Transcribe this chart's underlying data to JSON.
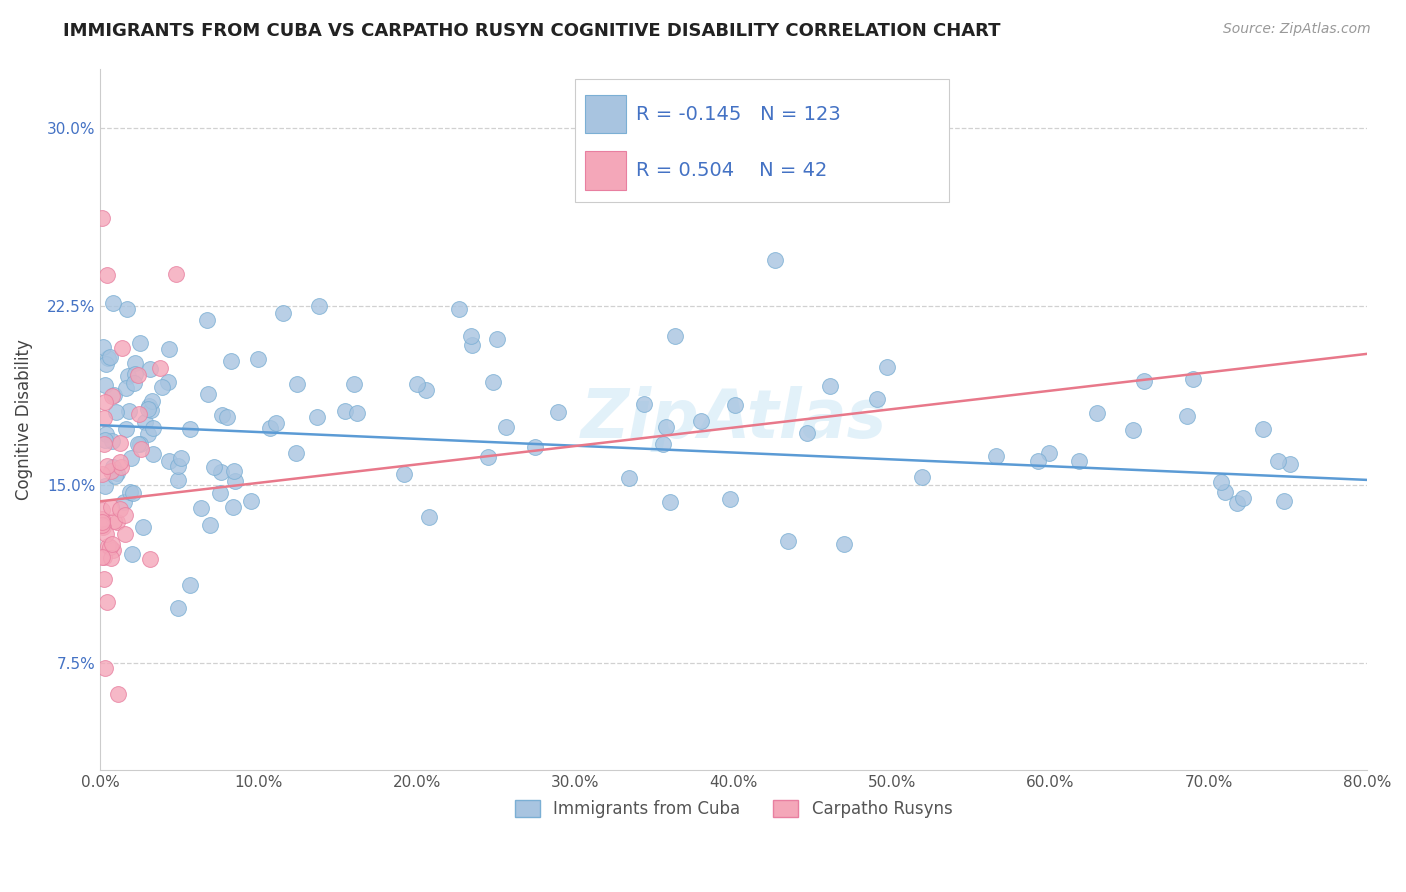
{
  "title": "IMMIGRANTS FROM CUBA VS CARPATHO RUSYN COGNITIVE DISABILITY CORRELATION CHART",
  "source": "Source: ZipAtlas.com",
  "ylabel": "Cognitive Disability",
  "xlim": [
    0.0,
    0.8
  ],
  "ylim": [
    0.03,
    0.325
  ],
  "xticks": [
    0.0,
    0.1,
    0.2,
    0.3,
    0.4,
    0.5,
    0.6,
    0.7,
    0.8
  ],
  "yticks": [
    0.075,
    0.15,
    0.225,
    0.3
  ],
  "cuba_color": "#a8c4e0",
  "cuba_edge": "#7bafd4",
  "rusyn_color": "#f4a7b9",
  "rusyn_edge": "#e87fa0",
  "trend_cuba_color": "#5b9bd5",
  "trend_rusyn_color": "#e8788a",
  "legend_r_cuba": "-0.145",
  "legend_n_cuba": "123",
  "legend_r_rusyn": "0.504",
  "legend_n_rusyn": "42",
  "legend_label_cuba": "Immigrants from Cuba",
  "legend_label_rusyn": "Carpatho Rusyns",
  "watermark": "ZipAtlas",
  "background_color": "#ffffff",
  "grid_color": "#cccccc",
  "cuba_trend_x0": 0.0,
  "cuba_trend_x1": 0.8,
  "cuba_trend_y0": 0.175,
  "cuba_trend_y1": 0.152,
  "rusyn_trend_x0": 0.0,
  "rusyn_trend_x1": 0.8,
  "rusyn_trend_y0": 0.143,
  "rusyn_trend_y1": 0.205
}
